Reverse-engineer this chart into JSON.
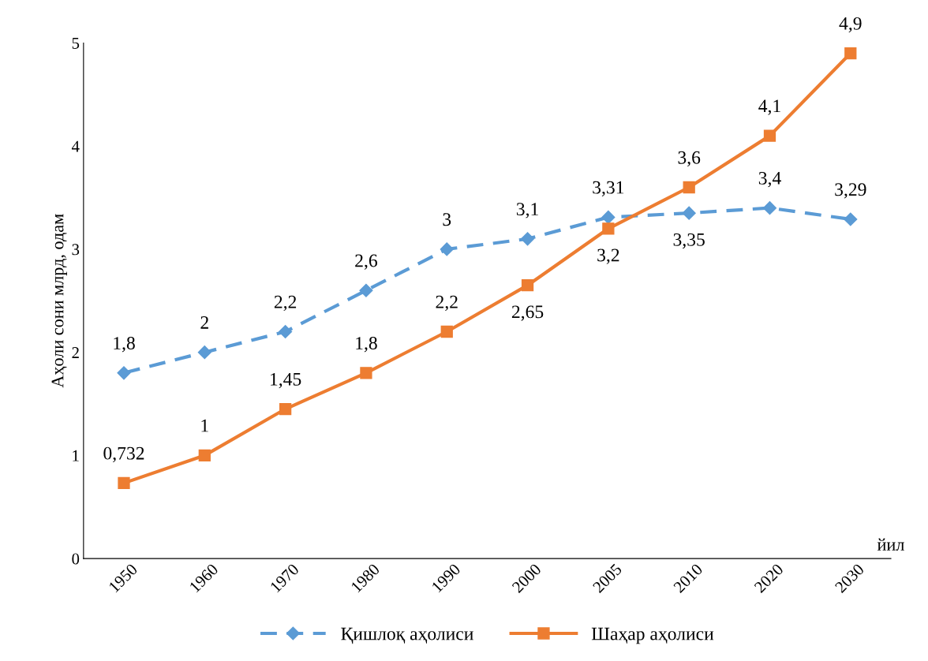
{
  "chart_data": {
    "type": "line",
    "xlabel": "йил",
    "ylabel": "Аҳоли сони млрд, одам",
    "categories": [
      "1950",
      "1960",
      "1970",
      "1980",
      "1990",
      "2000",
      "2005",
      "2010",
      "2020",
      "2030"
    ],
    "series": [
      {
        "name": "Қишлоқ аҳолиси",
        "color": "#5b9bd5",
        "marker": "diamond",
        "line_style": "dashed",
        "values": [
          1.8,
          2,
          2.2,
          2.6,
          3,
          3.1,
          3.31,
          3.35,
          3.4,
          3.29
        ],
        "value_labels": [
          "1,8",
          "2",
          "2,2",
          "2,6",
          "3",
          "3,1",
          "3,31",
          "3,35",
          "3,4",
          "3,29"
        ]
      },
      {
        "name": "Шаҳар аҳолиси",
        "color": "#ed7d31",
        "marker": "square",
        "line_style": "solid",
        "values": [
          0.732,
          1,
          1.45,
          1.8,
          2.2,
          2.65,
          3.2,
          3.6,
          4.1,
          4.9
        ],
        "value_labels": [
          "0,732",
          "1",
          "1,45",
          "1,8",
          "2,2",
          "2,65",
          "3,2",
          "3,6",
          "4,1",
          "4,9"
        ]
      }
    ],
    "ylim": [
      0,
      5
    ],
    "yticks": [
      0,
      1,
      2,
      3,
      4,
      5
    ],
    "grid": false,
    "legend": "bottom"
  }
}
